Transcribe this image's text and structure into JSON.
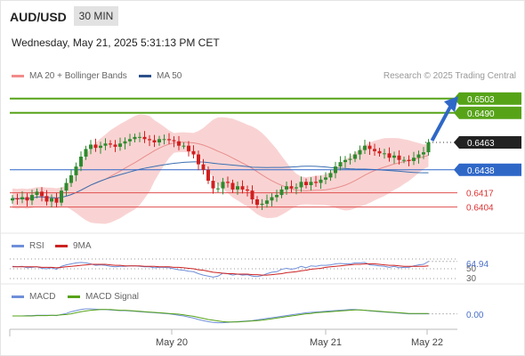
{
  "header": {
    "pair": "AUD/USD",
    "timeframe": "30 MIN",
    "datetime": "Wednesday, May 21, 2025 5:31:13 PM CET"
  },
  "legend": {
    "bb_label": "MA 20 + Bollinger Bands",
    "ma50_label": "MA 50",
    "credit": "Research © 2025 Trading Central",
    "rsi_label": "RSI",
    "rsi_ma_label": "9MA",
    "macd_label": "MACD",
    "macd_signal_label": "MACD Signal"
  },
  "colors": {
    "up": "#2e8b2e",
    "down": "#d11f1f",
    "bb_fill": "#f7c4c4",
    "ma50": "#3b6fb0",
    "target": "#56a318",
    "support": "#e05050",
    "pivot": "#2f67c7",
    "arrow": "#2f67c7",
    "rsi": "#6f8fd8",
    "rsi_ma": "#cc2222",
    "macd": "#6f8fd8",
    "macd_signal": "#56a318"
  },
  "chart_data": [
    {
      "type": "candlestick",
      "x_ticks": [
        "May 20",
        "May 21",
        "May 22"
      ],
      "ylim": [
        0.6385,
        0.6515
      ],
      "levels": [
        {
          "value": 0.6503,
          "label": "0.6503",
          "kind": "target"
        },
        {
          "value": 0.649,
          "label": "0.6490",
          "kind": "target"
        },
        {
          "value": 0.6463,
          "label": "0.6463",
          "kind": "last"
        },
        {
          "value": 0.6438,
          "label": "0.6438",
          "kind": "pivot"
        },
        {
          "value": 0.6417,
          "label": "0.6417",
          "kind": "support"
        },
        {
          "value": 0.6404,
          "label": "0.6404",
          "kind": "support"
        }
      ],
      "close": [
        0.6412,
        0.6411,
        0.6413,
        0.641,
        0.6415,
        0.6418,
        0.6414,
        0.6409,
        0.6412,
        0.6408,
        0.6419,
        0.6426,
        0.6433,
        0.6441,
        0.645,
        0.6457,
        0.6461,
        0.6458,
        0.646,
        0.6462,
        0.6461,
        0.6459,
        0.6462,
        0.6464,
        0.6466,
        0.6468,
        0.6468,
        0.6466,
        0.6465,
        0.6463,
        0.6466,
        0.6466,
        0.6465,
        0.6464,
        0.646,
        0.646,
        0.6455,
        0.6452,
        0.6443,
        0.6438,
        0.6428,
        0.6421,
        0.6421,
        0.6427,
        0.6426,
        0.642,
        0.6423,
        0.642,
        0.6419,
        0.6411,
        0.6406,
        0.6407,
        0.641,
        0.6413,
        0.6415,
        0.642,
        0.6423,
        0.6421,
        0.6422,
        0.6427,
        0.6424,
        0.6427,
        0.6426,
        0.6429,
        0.6431,
        0.6435,
        0.6441,
        0.6445,
        0.6447,
        0.6448,
        0.6452,
        0.6456,
        0.646,
        0.6457,
        0.6455,
        0.6453,
        0.6453,
        0.6449,
        0.6451,
        0.6447,
        0.6447,
        0.6446,
        0.6449,
        0.6452,
        0.6454,
        0.6463
      ]
    },
    {
      "type": "line",
      "name": "RSI",
      "value_label": "64.94",
      "levels": [
        70,
        50,
        30
      ],
      "series": [
        {
          "name": "RSI",
          "values": [
            55,
            54,
            55,
            52,
            53,
            54,
            51,
            50,
            52,
            49,
            55,
            58,
            60,
            62,
            63,
            62,
            60,
            57,
            58,
            57,
            55,
            54,
            55,
            55,
            56,
            56,
            55,
            54,
            54,
            52,
            53,
            53,
            52,
            50,
            48,
            47,
            45,
            44,
            40,
            37,
            35,
            33,
            35,
            41,
            40,
            37,
            39,
            37,
            38,
            35,
            34,
            36,
            40,
            43,
            44,
            49,
            51,
            49,
            51,
            55,
            52,
            56,
            55,
            57,
            57,
            58,
            60,
            61,
            60,
            60,
            62,
            62,
            63,
            58,
            57,
            56,
            55,
            53,
            55,
            52,
            53,
            53,
            56,
            58,
            59,
            65
          ]
        },
        {
          "name": "9MA",
          "values": [
            54,
            54,
            54,
            54,
            54,
            54,
            53,
            53,
            53,
            52,
            53,
            54,
            55,
            56,
            57,
            58,
            59,
            59,
            59,
            59,
            58,
            57,
            57,
            56,
            56,
            56,
            56,
            55,
            55,
            55,
            54,
            54,
            54,
            53,
            53,
            52,
            51,
            50,
            48,
            47,
            45,
            43,
            42,
            41,
            40,
            40,
            39,
            39,
            39,
            38,
            38,
            37,
            37,
            38,
            39,
            40,
            42,
            43,
            44,
            46,
            47,
            49,
            50,
            51,
            53,
            54,
            55,
            56,
            57,
            58,
            59,
            59,
            60,
            60,
            60,
            59,
            58,
            57,
            57,
            56,
            55,
            55,
            55,
            55,
            55,
            56
          ]
        }
      ]
    },
    {
      "type": "line",
      "name": "MACD",
      "value_label": "0.00",
      "series": [
        {
          "name": "MACD",
          "values": [
            0,
            0,
            0,
            0.05,
            0.05,
            0.1,
            0.1,
            0.1,
            0.1,
            0.05,
            0.2,
            0.35,
            0.6,
            0.75,
            0.9,
            1,
            1,
            0.95,
            0.9,
            0.9,
            0.85,
            0.8,
            0.75,
            0.75,
            0.7,
            0.65,
            0.6,
            0.55,
            0.5,
            0.45,
            0.4,
            0.35,
            0.3,
            0.2,
            0.1,
            0,
            -0.15,
            -0.3,
            -0.5,
            -0.65,
            -0.8,
            -0.9,
            -0.95,
            -0.95,
            -0.9,
            -0.85,
            -0.8,
            -0.75,
            -0.7,
            -0.65,
            -0.55,
            -0.45,
            -0.35,
            -0.25,
            -0.15,
            -0.05,
            0.05,
            0.15,
            0.25,
            0.35,
            0.45,
            0.5,
            0.55,
            0.6,
            0.65,
            0.7,
            0.75,
            0.8,
            0.85,
            0.9,
            0.9,
            0.85,
            0.8,
            0.7,
            0.65,
            0.6,
            0.55,
            0.5,
            0.45,
            0.4,
            0.35,
            0.3,
            0.3,
            0.3,
            0.3,
            0.3
          ]
        },
        {
          "name": "MACD Signal",
          "values": [
            0,
            0,
            0,
            0,
            0,
            0.05,
            0.05,
            0.05,
            0.1,
            0.1,
            0.15,
            0.2,
            0.3,
            0.45,
            0.6,
            0.7,
            0.8,
            0.85,
            0.9,
            0.9,
            0.9,
            0.85,
            0.8,
            0.8,
            0.75,
            0.7,
            0.65,
            0.6,
            0.55,
            0.5,
            0.45,
            0.4,
            0.35,
            0.3,
            0.25,
            0.15,
            0.05,
            -0.05,
            -0.2,
            -0.35,
            -0.5,
            -0.6,
            -0.7,
            -0.8,
            -0.85,
            -0.85,
            -0.85,
            -0.8,
            -0.75,
            -0.7,
            -0.65,
            -0.6,
            -0.5,
            -0.4,
            -0.3,
            -0.2,
            -0.1,
            0,
            0.1,
            0.2,
            0.3,
            0.35,
            0.45,
            0.5,
            0.55,
            0.6,
            0.65,
            0.7,
            0.75,
            0.8,
            0.85,
            0.85,
            0.8,
            0.75,
            0.7,
            0.65,
            0.6,
            0.55,
            0.5,
            0.45,
            0.4,
            0.35,
            0.35,
            0.35,
            0.35,
            0.35
          ]
        }
      ]
    }
  ]
}
